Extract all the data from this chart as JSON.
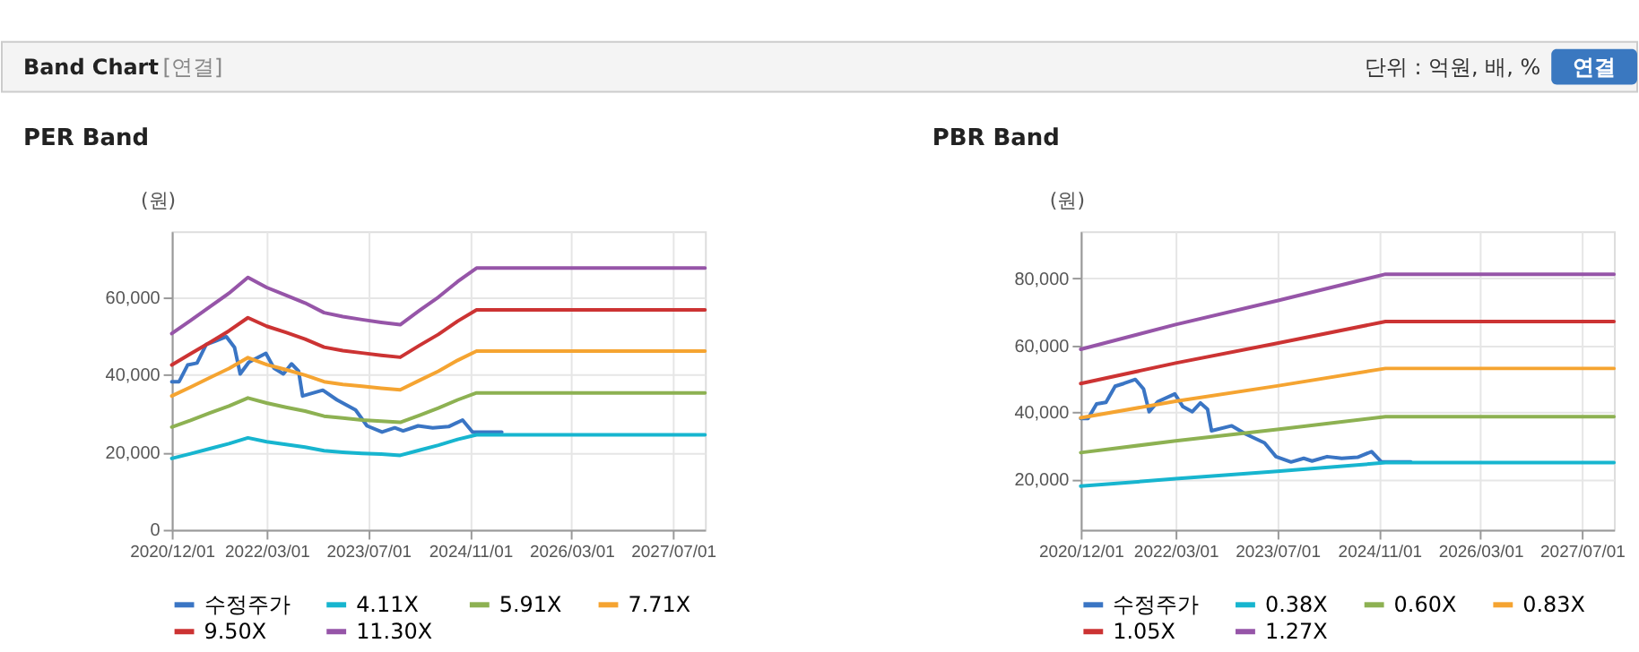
{
  "chart_data": [
    {
      "type": "line",
      "title": "PER Band",
      "ylabel": "(원)",
      "annotations": [
        "Band Chart",
        "[연결]",
        "단위 : 억원, 배, %",
        "연결"
      ],
      "xlim": [
        "2020-12-01",
        "2027-12-01"
      ],
      "xticks": [
        {
          "value": "2020-12-01",
          "label": "2020/12/01"
        },
        {
          "value": "2022-03-01",
          "label": "2022/03/01"
        },
        {
          "value": "2023-07-01",
          "label": "2023/07/01"
        },
        {
          "value": "2024-11-01",
          "label": "2024/11/01"
        },
        {
          "value": "2026-03-01",
          "label": "2026/03/01"
        },
        {
          "value": "2027-07-01",
          "label": "2027/07/01"
        }
      ],
      "ylim": [
        0,
        77000
      ],
      "yticks": [
        0,
        {
          "value": 20000,
          "label": "20,000"
        },
        {
          "value": 40000,
          "label": "40,000"
        },
        {
          "value": 60000,
          "label": "60,000"
        }
      ],
      "grid": true,
      "legend": "bottom",
      "marker": "none",
      "line_style": "solid",
      "series": [
        {
          "name": "수정주가",
          "color": "#3a75c4",
          "x": [
            "2020-12-01",
            "2021-01-05",
            "2021-02-15",
            "2021-04-01",
            "2021-05-15",
            "2021-06-25",
            "2021-08-20",
            "2021-09-28",
            "2021-10-25",
            "2021-12-05",
            "2022-02-25",
            "2022-04-05",
            "2022-05-20",
            "2022-06-28",
            "2022-08-01",
            "2022-08-20",
            "2022-11-25",
            "2023-02-01",
            "2023-05-01",
            "2023-06-25",
            "2023-09-05",
            "2023-11-05",
            "2023-12-15",
            "2024-02-25",
            "2024-05-05",
            "2024-07-20",
            "2024-09-25",
            "2024-11-12",
            "2025-04-01"
          ],
          "values": [
            38200,
            38200,
            42500,
            43000,
            47800,
            48600,
            49800,
            47000,
            40200,
            43200,
            45500,
            41700,
            40200,
            42800,
            40900,
            34500,
            36000,
            33500,
            30900,
            26800,
            25200,
            26300,
            25500,
            26800,
            26300,
            26600,
            28300,
            25200,
            25200
          ]
        },
        {
          "name": "4.11X",
          "color": "#17b5cf",
          "x": [
            "2020-12-01",
            "2021-03-01",
            "2021-06-01",
            "2021-09-01",
            "2021-12-01",
            "2022-03-01",
            "2022-06-01",
            "2022-09-01",
            "2022-12-01",
            "2023-03-01",
            "2023-06-01",
            "2023-09-01",
            "2023-12-01",
            "2024-03-01",
            "2024-06-01",
            "2024-09-01",
            "2024-12-01",
            "2027-12-01"
          ],
          "values": [
            18400,
            19600,
            20900,
            22200,
            23700,
            22700,
            22000,
            21300,
            20400,
            20000,
            19700,
            19500,
            19200,
            20500,
            21800,
            23300,
            24500,
            24500
          ]
        },
        {
          "name": "5.91X",
          "color": "#8db152",
          "x": [
            "2020-12-01",
            "2021-03-01",
            "2021-06-01",
            "2021-09-01",
            "2021-12-01",
            "2022-03-01",
            "2022-06-01",
            "2022-09-01",
            "2022-12-01",
            "2023-03-01",
            "2023-06-01",
            "2023-09-01",
            "2023-12-01",
            "2024-03-01",
            "2024-06-01",
            "2024-09-01",
            "2024-12-01",
            "2027-12-01"
          ],
          "values": [
            26500,
            28200,
            30100,
            31900,
            34000,
            32700,
            31600,
            30600,
            29300,
            28800,
            28300,
            28000,
            27700,
            29500,
            31400,
            33500,
            35300,
            35300
          ]
        },
        {
          "name": "7.71X",
          "color": "#f5a431",
          "x": [
            "2020-12-01",
            "2021-03-01",
            "2021-06-01",
            "2021-09-01",
            "2021-12-01",
            "2022-03-01",
            "2022-06-01",
            "2022-09-01",
            "2022-12-01",
            "2023-03-01",
            "2023-06-01",
            "2023-09-01",
            "2023-12-01",
            "2024-03-01",
            "2024-06-01",
            "2024-09-01",
            "2024-12-01",
            "2027-12-01"
          ],
          "values": [
            34500,
            36800,
            39200,
            41600,
            44400,
            42600,
            41300,
            39900,
            38200,
            37500,
            37000,
            36500,
            36100,
            38500,
            40900,
            43700,
            46100,
            46100
          ]
        },
        {
          "name": "9.50X",
          "color": "#cc3333",
          "x": [
            "2020-12-01",
            "2021-03-01",
            "2021-06-01",
            "2021-09-01",
            "2021-12-01",
            "2022-03-01",
            "2022-06-01",
            "2022-09-01",
            "2022-12-01",
            "2023-03-01",
            "2023-06-01",
            "2023-09-01",
            "2023-12-01",
            "2024-03-01",
            "2024-06-01",
            "2024-09-01",
            "2024-12-01",
            "2027-12-01"
          ],
          "values": [
            42500,
            45400,
            48300,
            51300,
            54700,
            52500,
            50900,
            49200,
            47100,
            46200,
            45600,
            45000,
            44500,
            47500,
            50400,
            53800,
            56700,
            56700
          ]
        },
        {
          "name": "11.30X",
          "color": "#9655a8",
          "x": [
            "2020-12-01",
            "2021-03-01",
            "2021-06-01",
            "2021-09-01",
            "2021-12-01",
            "2022-03-01",
            "2022-06-01",
            "2022-09-01",
            "2022-12-01",
            "2023-03-01",
            "2023-06-01",
            "2023-09-01",
            "2023-12-01",
            "2024-03-01",
            "2024-06-01",
            "2024-09-01",
            "2024-12-01",
            "2027-12-01"
          ],
          "values": [
            50600,
            54000,
            57500,
            61000,
            65100,
            62500,
            60500,
            58500,
            56000,
            55000,
            54200,
            53500,
            52900,
            56500,
            60000,
            64000,
            67500,
            67500
          ]
        }
      ]
    },
    {
      "type": "line",
      "title": "PBR Band",
      "ylabel": "(원)",
      "xlim": [
        "2020-12-01",
        "2027-12-01"
      ],
      "xticks": [
        {
          "value": "2020-12-01",
          "label": "2020/12/01"
        },
        {
          "value": "2022-03-01",
          "label": "2022/03/01"
        },
        {
          "value": "2023-07-01",
          "label": "2023/07/01"
        },
        {
          "value": "2024-11-01",
          "label": "2024/11/01"
        },
        {
          "value": "2026-03-01",
          "label": "2026/03/01"
        },
        {
          "value": "2027-07-01",
          "label": "2027/07/01"
        }
      ],
      "ylim": [
        5000,
        94000
      ],
      "yticks": [
        {
          "value": 20000,
          "label": "20,000"
        },
        {
          "value": 40000,
          "label": "40,000"
        },
        {
          "value": 60000,
          "label": "60,000"
        },
        {
          "value": 80000,
          "label": "80,000"
        }
      ],
      "grid": true,
      "legend": "bottom",
      "marker": "none",
      "line_style": "solid",
      "series": [
        {
          "name": "수정주가",
          "color": "#3a75c4",
          "x": [
            "2020-12-01",
            "2021-01-05",
            "2021-02-15",
            "2021-04-01",
            "2021-05-15",
            "2021-06-25",
            "2021-08-20",
            "2021-09-28",
            "2021-10-25",
            "2021-12-05",
            "2022-02-25",
            "2022-04-05",
            "2022-05-20",
            "2022-06-28",
            "2022-08-01",
            "2022-08-20",
            "2022-11-25",
            "2023-02-01",
            "2023-05-01",
            "2023-06-25",
            "2023-09-05",
            "2023-11-05",
            "2023-12-15",
            "2024-02-25",
            "2024-05-05",
            "2024-07-20",
            "2024-09-25",
            "2024-11-12",
            "2025-04-01"
          ],
          "values": [
            38200,
            38200,
            42500,
            43000,
            47800,
            48600,
            49800,
            47000,
            40200,
            43200,
            45500,
            41700,
            40200,
            42800,
            40900,
            34500,
            36000,
            33500,
            30900,
            26800,
            25200,
            26300,
            25500,
            26800,
            26300,
            26600,
            28300,
            25200,
            25200
          ]
        },
        {
          "name": "0.38X",
          "color": "#17b5cf",
          "x": [
            "2020-12-01",
            "2022-03-01",
            "2023-07-01",
            "2024-12-01",
            "2027-12-01"
          ],
          "values": [
            18000,
            20200,
            22400,
            25000,
            25000
          ]
        },
        {
          "name": "0.60X",
          "color": "#8db152",
          "x": [
            "2020-12-01",
            "2022-03-01",
            "2023-07-01",
            "2024-12-01",
            "2027-12-01"
          ],
          "values": [
            28000,
            31500,
            34900,
            38700,
            38700
          ]
        },
        {
          "name": "0.83X",
          "color": "#f5a431",
          "x": [
            "2020-12-01",
            "2022-03-01",
            "2023-07-01",
            "2024-12-01",
            "2027-12-01"
          ],
          "values": [
            38400,
            43300,
            47900,
            53100,
            53100
          ]
        },
        {
          "name": "1.05X",
          "color": "#cc3333",
          "x": [
            "2020-12-01",
            "2022-03-01",
            "2023-07-01",
            "2024-12-01",
            "2027-12-01"
          ],
          "values": [
            48600,
            54700,
            60600,
            67100,
            67100
          ]
        },
        {
          "name": "1.27X",
          "color": "#9655a8",
          "x": [
            "2020-12-01",
            "2022-03-01",
            "2023-07-01",
            "2024-12-01",
            "2027-12-01"
          ],
          "values": [
            58800,
            66200,
            73300,
            81200,
            81200
          ]
        }
      ]
    }
  ]
}
